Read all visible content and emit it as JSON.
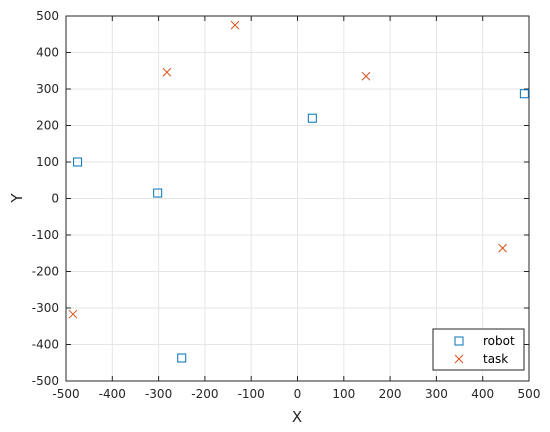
{
  "chart_data": {
    "type": "scatter",
    "title": "",
    "xlabel": "X",
    "ylabel": "Y",
    "xlim": [
      -500,
      500
    ],
    "ylim": [
      -500,
      500
    ],
    "xticks": [
      -500,
      -400,
      -300,
      -200,
      -100,
      0,
      100,
      200,
      300,
      400,
      500
    ],
    "yticks": [
      -500,
      -400,
      -300,
      -200,
      -100,
      0,
      100,
      200,
      300,
      400,
      500
    ],
    "grid": true,
    "legend_position": "bottom-right",
    "series": [
      {
        "name": "robot",
        "marker": "square",
        "color": "#0072BD",
        "points": [
          {
            "x": -475,
            "y": 100
          },
          {
            "x": -302,
            "y": 15
          },
          {
            "x": -250,
            "y": -437
          },
          {
            "x": 32,
            "y": 220
          },
          {
            "x": 490,
            "y": 287
          }
        ]
      },
      {
        "name": "task",
        "marker": "x",
        "color": "#D95319",
        "points": [
          {
            "x": -485,
            "y": -317
          },
          {
            "x": -282,
            "y": 346
          },
          {
            "x": -135,
            "y": 475
          },
          {
            "x": 148,
            "y": 335
          },
          {
            "x": 443,
            "y": -136
          }
        ]
      }
    ]
  }
}
